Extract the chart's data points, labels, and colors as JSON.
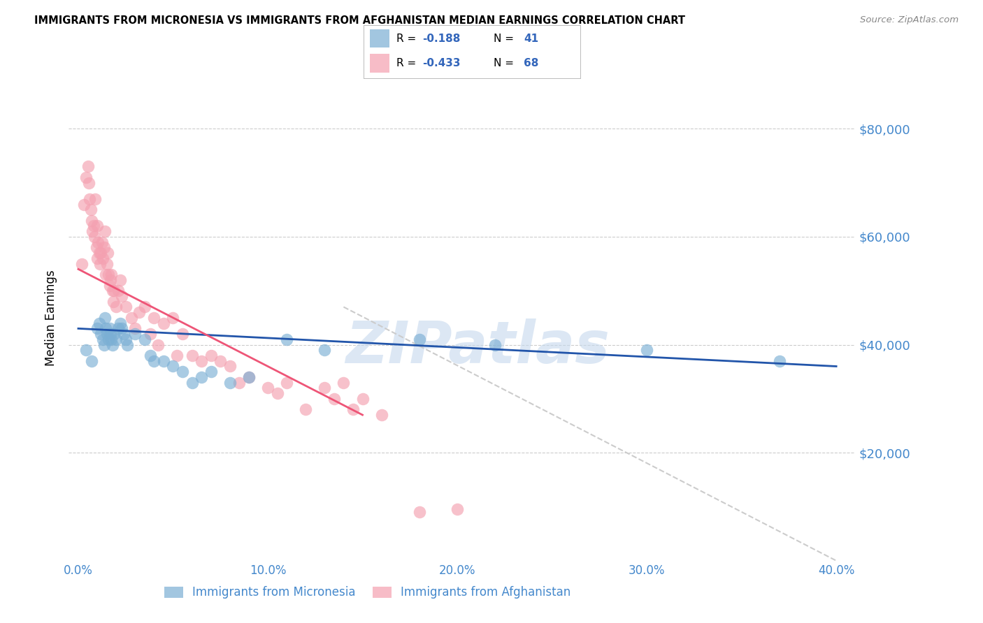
{
  "title": "IMMIGRANTS FROM MICRONESIA VS IMMIGRANTS FROM AFGHANISTAN MEDIAN EARNINGS CORRELATION CHART",
  "source": "Source: ZipAtlas.com",
  "ylabel": "Median Earnings",
  "y_tick_labels": [
    "$20,000",
    "$40,000",
    "$60,000",
    "$80,000"
  ],
  "y_tick_values": [
    20000,
    40000,
    60000,
    80000
  ],
  "x_tick_labels": [
    "0.0%",
    "10.0%",
    "20.0%",
    "30.0%",
    "40.0%"
  ],
  "x_tick_values": [
    0.0,
    10.0,
    20.0,
    30.0,
    40.0
  ],
  "xlim": [
    -0.5,
    41.0
  ],
  "ylim": [
    0,
    90000
  ],
  "micronesia_color": "#7BAFD4",
  "afghanistan_color": "#F4A0B0",
  "trend_blue_color": "#2255AA",
  "trend_pink_color": "#EE5577",
  "diagonal_color": "#CCCCCC",
  "watermark_color": "#C5D8ED",
  "background_color": "#FFFFFF",
  "title_fontsize": 10.5,
  "source_fontsize": 9.5,
  "axis_label_color": "#4488CC",
  "legend_text_color": "#3366BB",
  "micronesia_x": [
    0.4,
    0.7,
    1.0,
    1.1,
    1.2,
    1.3,
    1.35,
    1.4,
    1.45,
    1.5,
    1.6,
    1.65,
    1.7,
    1.75,
    1.8,
    1.9,
    2.0,
    2.1,
    2.2,
    2.3,
    2.4,
    2.5,
    2.6,
    3.0,
    3.5,
    3.8,
    4.0,
    4.5,
    5.0,
    5.5,
    6.0,
    6.5,
    7.0,
    8.0,
    9.0,
    11.0,
    13.0,
    18.0,
    22.0,
    30.0,
    37.0
  ],
  "micronesia_y": [
    39000,
    37000,
    43000,
    44000,
    42000,
    41000,
    40000,
    45000,
    43000,
    42000,
    41000,
    43000,
    42000,
    41000,
    40000,
    42000,
    41000,
    43000,
    44000,
    43000,
    42000,
    41000,
    40000,
    42000,
    41000,
    38000,
    37000,
    37000,
    36000,
    35000,
    33000,
    34000,
    35000,
    33000,
    34000,
    41000,
    39000,
    41000,
    40000,
    39000,
    37000
  ],
  "afghanistan_x": [
    0.2,
    0.3,
    0.4,
    0.5,
    0.55,
    0.6,
    0.65,
    0.7,
    0.75,
    0.8,
    0.85,
    0.9,
    0.95,
    1.0,
    1.0,
    1.05,
    1.1,
    1.15,
    1.2,
    1.25,
    1.3,
    1.35,
    1.4,
    1.45,
    1.5,
    1.55,
    1.6,
    1.65,
    1.7,
    1.75,
    1.8,
    1.85,
    1.9,
    2.0,
    2.1,
    2.2,
    2.3,
    2.5,
    2.8,
    3.0,
    3.2,
    3.5,
    4.0,
    4.5,
    5.0,
    5.5,
    6.0,
    6.5,
    7.0,
    7.5,
    8.0,
    9.0,
    10.0,
    11.0,
    12.0,
    13.0,
    14.0,
    15.0,
    16.0,
    18.0,
    20.0,
    3.8,
    4.2,
    5.2,
    8.5,
    10.5,
    13.5,
    14.5
  ],
  "afghanistan_y": [
    55000,
    66000,
    71000,
    73000,
    70000,
    67000,
    65000,
    63000,
    61000,
    62000,
    60000,
    67000,
    58000,
    56000,
    62000,
    59000,
    57000,
    55000,
    57000,
    59000,
    56000,
    58000,
    61000,
    53000,
    55000,
    57000,
    53000,
    51000,
    52000,
    53000,
    50000,
    48000,
    50000,
    47000,
    50000,
    52000,
    49000,
    47000,
    45000,
    43000,
    46000,
    47000,
    45000,
    44000,
    45000,
    42000,
    38000,
    37000,
    38000,
    37000,
    36000,
    34000,
    32000,
    33000,
    28000,
    32000,
    33000,
    30000,
    27000,
    9000,
    9500,
    42000,
    40000,
    38000,
    33000,
    31000,
    30000,
    28000
  ],
  "blue_trend_x0": 0.0,
  "blue_trend_y0": 43000,
  "blue_trend_x1": 40.0,
  "blue_trend_y1": 36000,
  "pink_trend_x0": 0.0,
  "pink_trend_y0": 54000,
  "pink_trend_x1": 15.0,
  "pink_trend_y1": 27000,
  "diag_x0": 14.0,
  "diag_y0": 47000,
  "diag_x1": 40.0,
  "diag_y1": 0
}
